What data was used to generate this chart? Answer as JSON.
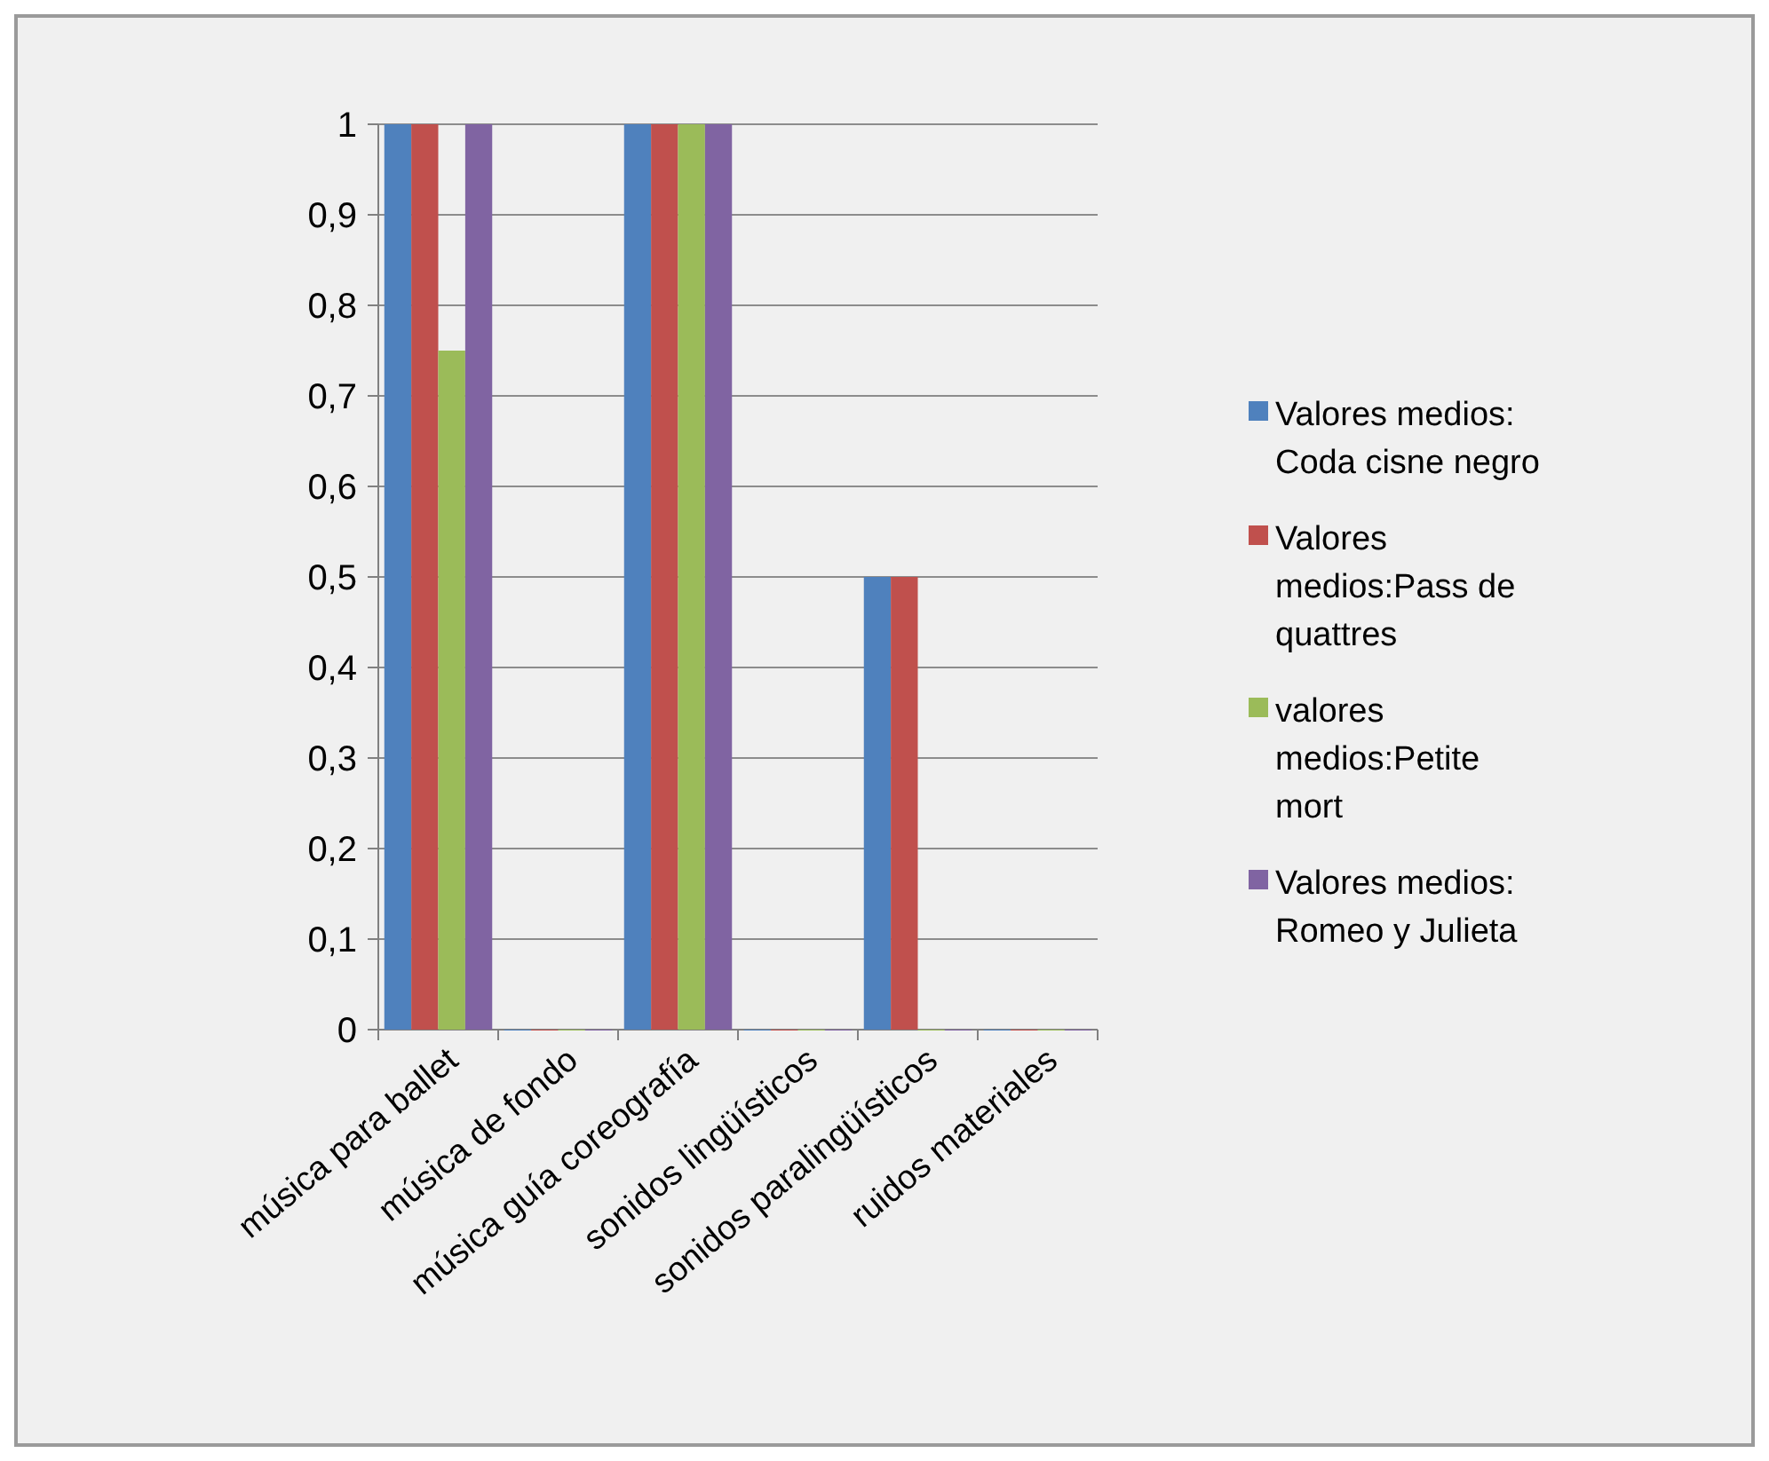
{
  "chart_data": {
    "type": "bar",
    "categories": [
      "música para ballet",
      "música de fondo",
      "música guía  coreografía",
      "sonidos lingüísticos",
      "sonidos paralingüísticos",
      "ruidos materiales"
    ],
    "series": [
      {
        "name": "Valores medios: Coda cisne negro",
        "color": "#4f81bd",
        "values": [
          1,
          0,
          1,
          0,
          0.5,
          0
        ]
      },
      {
        "name": "Valores medios:Pass de quattres",
        "color": "#c0504d",
        "values": [
          1,
          0,
          1,
          0,
          0.5,
          0
        ]
      },
      {
        "name": "valores medios:Petite mort",
        "color": "#9bbb59",
        "values": [
          0.75,
          0,
          1,
          0,
          0,
          0
        ]
      },
      {
        "name": "Valores medios: Romeo y Julieta",
        "color": "#8064a2",
        "values": [
          1,
          0,
          1,
          0,
          0,
          0
        ]
      }
    ],
    "ylim": [
      0,
      1
    ],
    "yticks": [
      0,
      {
        "value": 0.1,
        "label": "0,1"
      },
      {
        "value": 0.2,
        "label": "0,2"
      },
      {
        "value": 0.3,
        "label": "0,3"
      },
      {
        "value": 0.4,
        "label": "0,4"
      },
      {
        "value": 0.5,
        "label": "0,5"
      },
      {
        "value": 0.6,
        "label": "0,6"
      },
      {
        "value": 0.7,
        "label": "0,7"
      },
      {
        "value": 0.8,
        "label": "0,8"
      },
      {
        "value": 0.9,
        "label": "0,9"
      },
      1
    ],
    "grid": "y",
    "legend": "right"
  }
}
